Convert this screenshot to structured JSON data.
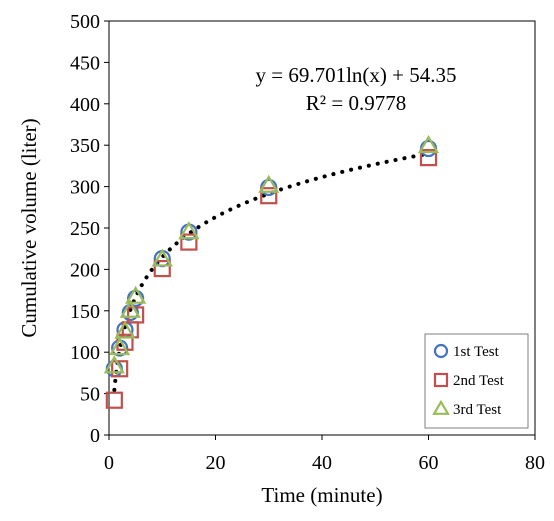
{
  "chart_data": {
    "type": "scatter",
    "xlabel": "Time (minute)",
    "ylabel": "Cumulative volume (liter)",
    "xlim": [
      0,
      80
    ],
    "ylim": [
      0,
      500
    ],
    "x_ticks": [
      0,
      20,
      40,
      60,
      80
    ],
    "y_ticks": [
      0,
      50,
      100,
      150,
      200,
      250,
      300,
      350,
      400,
      450,
      500
    ],
    "grid": false,
    "legend_position": "bottom-right",
    "series": [
      {
        "name": "1st Test",
        "marker": "circle",
        "color": "#4472C4",
        "x": [
          1,
          2,
          3,
          4,
          5,
          10,
          15,
          30,
          60
        ],
        "y": [
          80,
          105,
          127,
          148,
          165,
          213,
          245,
          299,
          346
        ]
      },
      {
        "name": "2nd Test",
        "marker": "square",
        "color": "#C0504D",
        "x": [
          1,
          2,
          3,
          4,
          5,
          10,
          15,
          30,
          60
        ],
        "y": [
          42,
          80,
          112,
          127,
          145,
          201,
          233,
          289,
          335
        ]
      },
      {
        "name": "3rd Test",
        "marker": "triangle",
        "color": "#9BBB59",
        "x": [
          1,
          2,
          3,
          4,
          5,
          10,
          15,
          30,
          60
        ],
        "y": [
          83,
          105,
          125,
          150,
          167,
          212,
          245,
          301,
          349
        ]
      }
    ],
    "trendline": {
      "type": "logarithmic",
      "color": "#000000",
      "style": "dotted",
      "a": 69.701,
      "b": 54.35,
      "x_range": [
        1,
        60
      ],
      "equation_text": "y = 69.701ln(x) + 54.35",
      "r2_text": "R² = 0.9778"
    }
  }
}
